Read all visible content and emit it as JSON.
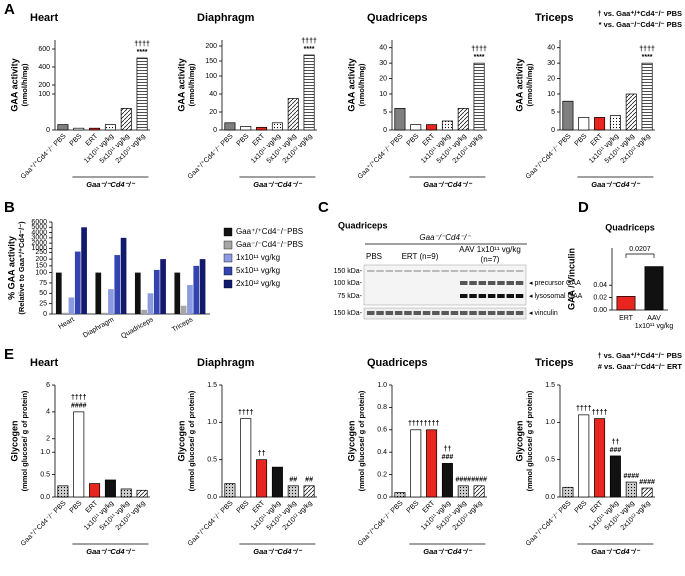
{
  "panel_labels": [
    "A",
    "B",
    "C",
    "D",
    "E"
  ],
  "chart_data": [
    {
      "type": "bar",
      "title": "Heart",
      "ylabel": [
        "GAA activity",
        "(nmol/h/mg)"
      ],
      "categories": [
        "Gaa⁺/⁺Cd4⁻/⁻ PBS",
        "PBS",
        "ERT",
        "1x10¹¹ vg/kg",
        "5x10¹¹ vg/kg",
        "2x10¹² vg/kg"
      ],
      "values": [
        15,
        5,
        5,
        15,
        60,
        500
      ],
      "colors": [
        "#7f7f7f",
        "#ffffff",
        "#e8251f",
        "#ffffff",
        "#ffffff",
        "#ffffff"
      ],
      "patterns": [
        null,
        null,
        null,
        "dots",
        "diagonal",
        "horizontal"
      ],
      "ysegments": [
        {
          "ylim": [
            0,
            100
          ],
          "yticks": [
            0,
            100
          ]
        },
        {
          "ylim": [
            100,
            700
          ],
          "yticks": [
            200,
            400,
            600
          ]
        }
      ],
      "annotations": [
        null,
        null,
        null,
        null,
        null,
        [
          "††††",
          "****"
        ]
      ],
      "group_label": "Gaa⁻/⁻Cd4⁻/⁻"
    },
    {
      "type": "bar",
      "title": "Diaphragm",
      "ylabel": [
        "GAA activity",
        "(nmol/h/mg)"
      ],
      "categories": [
        "Gaa⁺/⁺Cd4⁻/⁻ PBS",
        "PBS",
        "ERT",
        "1x10¹¹ vg/kg",
        "5x10¹¹ vg/kg",
        "2x10¹² vg/kg"
      ],
      "values": [
        8,
        4,
        3,
        8,
        35,
        170
      ],
      "colors": [
        "#7f7f7f",
        "#ffffff",
        "#e8251f",
        "#ffffff",
        "#ffffff",
        "#ffffff"
      ],
      "patterns": [
        null,
        null,
        null,
        "dots",
        "diagonal",
        "horizontal"
      ],
      "ysegments": [
        {
          "ylim": [
            0,
            40
          ],
          "yticks": [
            0,
            20,
            40
          ]
        },
        {
          "ylim": [
            40,
            220
          ],
          "yticks": [
            100,
            150,
            200
          ]
        }
      ],
      "annotations": [
        null,
        null,
        null,
        null,
        null,
        [
          "††††",
          "****"
        ]
      ],
      "group_label": "Gaa⁻/⁻Cd4⁻/⁻"
    },
    {
      "type": "bar",
      "title": "Quadriceps",
      "ylabel": [
        "GAA activity",
        "(nmol/h/mg)"
      ],
      "categories": [
        "Gaa⁺/⁺Cd4⁻/⁻ PBS",
        "PBS",
        "ERT",
        "1x10¹¹ vg/kg",
        "5x10¹¹ vg/kg",
        "2x10¹² vg/kg"
      ],
      "values": [
        6,
        1.5,
        1.5,
        2.5,
        6,
        30
      ],
      "colors": [
        "#7f7f7f",
        "#ffffff",
        "#e8251f",
        "#ffffff",
        "#ffffff",
        "#ffffff"
      ],
      "patterns": [
        null,
        null,
        null,
        "dots",
        "diagonal",
        "horizontal"
      ],
      "ysegments": [
        {
          "ylim": [
            0,
            10
          ],
          "yticks": [
            0,
            5,
            10
          ]
        },
        {
          "ylim": [
            10,
            45
          ],
          "yticks": [
            20,
            30,
            40
          ]
        }
      ],
      "annotations": [
        null,
        null,
        null,
        null,
        null,
        [
          "††††",
          "****"
        ]
      ],
      "group_label": "Gaa⁻/⁻Cd4⁻/⁻"
    },
    {
      "type": "bar",
      "title": "Triceps",
      "ylabel": [
        "GAA activity",
        "(nmol/h/mg)"
      ],
      "categories": [
        "Gaa⁺/⁺Cd4⁻/⁻ PBS",
        "PBS",
        "ERT",
        "1x10¹¹ vg/kg",
        "5x10¹¹ vg/kg",
        "2x10¹² vg/kg"
      ],
      "values": [
        8,
        3.5,
        3.5,
        4,
        10,
        30
      ],
      "colors": [
        "#7f7f7f",
        "#ffffff",
        "#e8251f",
        "#ffffff",
        "#ffffff",
        "#ffffff"
      ],
      "patterns": [
        null,
        null,
        null,
        "dots",
        "diagonal",
        "horizontal"
      ],
      "ysegments": [
        {
          "ylim": [
            0,
            10
          ],
          "yticks": [
            0,
            5,
            10
          ]
        },
        {
          "ylim": [
            10,
            45
          ],
          "yticks": [
            20,
            30,
            40
          ]
        }
      ],
      "annotations": [
        null,
        null,
        null,
        null,
        null,
        [
          "††††",
          "****"
        ]
      ],
      "group_label": "Gaa⁻/⁻Cd4⁻/⁻",
      "notes": [
        "† vs. Gaa⁺/⁺Cd4⁻/⁻ PBS",
        "* vs. Gaa⁻/⁻Cd4⁻/⁻ PBS"
      ]
    },
    {
      "type": "bar",
      "ylabel": [
        "% GAA activity",
        "(Relative to Gaa⁺/⁺Cd4⁻/⁻)"
      ],
      "categories": [
        "Heart",
        "Diaphragm",
        "Quadriceps",
        "Triceps"
      ],
      "series": [
        {
          "name": "Gaa⁺/⁺Cd4⁻/⁻PBS",
          "color": "#111111",
          "values": [
            100,
            100,
            100,
            100
          ]
        },
        {
          "name": "Gaa⁻/⁻Cd4⁻/⁻PBS",
          "color": "#a6a6a6",
          "values": [
            3,
            3,
            10,
            20
          ]
        },
        {
          "name": "1x10¹¹ vg/kg",
          "color": "#8c9be0",
          "values": [
            40,
            60,
            50,
            70
          ]
        },
        {
          "name": "5x10¹¹ vg/kg",
          "color": "#3344b0",
          "values": [
            400,
            230,
            120,
            150
          ]
        },
        {
          "name": "2x10¹² vg/kg",
          "color": "#121a6e",
          "values": [
            5000,
            3000,
            200,
            200
          ]
        }
      ],
      "ysegments": [
        {
          "ylim": [
            0,
            100
          ],
          "yticks": [
            0,
            25,
            50,
            75,
            100
          ]
        },
        {
          "ylim": [
            100,
            250
          ],
          "yticks": [
            150,
            200,
            250
          ]
        },
        {
          "ylim": [
            250,
            6000
          ],
          "yticks": [
            1000,
            2000,
            3000,
            4000,
            5000,
            6000
          ]
        }
      ]
    },
    {
      "type": "bar",
      "title": "Quadriceps",
      "ylabel": [
        "GAA / Vinculin"
      ],
      "categories": [
        "ERT",
        [
          "AAV",
          "1x10¹¹ vg/kg"
        ]
      ],
      "values": [
        0.022,
        0.07
      ],
      "colors": [
        "#e8251f",
        "#111111"
      ],
      "patterns": [
        null,
        null
      ],
      "ylim": [
        0,
        0.1
      ],
      "yticks": [
        {
          "value": 0,
          "label": "0.00"
        },
        0.02,
        0.04
      ],
      "pvalue": "0.0207"
    },
    {
      "type": "bar",
      "title": "Heart",
      "ylabel": [
        "Glycogen",
        "(mmol glucose/ g of protein)"
      ],
      "categories": [
        "Gaa⁺/⁺Cd4⁻/⁻ PBS",
        "PBS",
        "ERT",
        "1x10¹¹ vg/kg",
        "5x10¹¹ vg/kg",
        "2x10¹² vg/kg"
      ],
      "values": [
        0.25,
        4.0,
        0.3,
        0.38,
        0.18,
        0.15
      ],
      "colors": [
        "#d0d0d0",
        "#ffffff",
        "#e8251f",
        "#111111",
        "#d0d0d0",
        "#ffffff"
      ],
      "patterns": [
        "dots",
        null,
        null,
        null,
        "dots",
        "diagonal"
      ],
      "ysegments": [
        {
          "ylim": [
            0,
            1
          ],
          "yticks": [
            {
              "value": 0,
              "label": "0.0"
            },
            0.5,
            {
              "value": 1,
              "label": "1.0"
            }
          ]
        },
        {
          "ylim": [
            1,
            6
          ],
          "yticks": [
            2,
            4,
            6
          ]
        }
      ],
      "annotations": [
        null,
        [
          "††††",
          "####"
        ],
        null,
        null,
        null,
        null
      ],
      "group_label": "Gaa⁻/⁻Cd4⁻/⁻"
    },
    {
      "type": "bar",
      "title": "Diaphragm",
      "ylabel": [
        "Glycogen",
        "(mmol glucose/ g of protein)"
      ],
      "categories": [
        "Gaa⁺/⁺Cd4⁻/⁻ PBS",
        "PBS",
        "ERT",
        "1x10¹¹ vg/kg",
        "5x10¹¹ vg/kg",
        "2x10¹² vg/kg"
      ],
      "values": [
        0.18,
        1.05,
        0.5,
        0.4,
        0.15,
        0.15
      ],
      "colors": [
        "#d0d0d0",
        "#ffffff",
        "#e8251f",
        "#111111",
        "#d0d0d0",
        "#ffffff"
      ],
      "patterns": [
        "dots",
        null,
        null,
        null,
        "dots",
        "diagonal"
      ],
      "ylim": [
        0,
        1.5
      ],
      "yticks": [
        {
          "value": 0,
          "label": "0.0"
        },
        0.5,
        {
          "value": 1,
          "label": "1.0"
        },
        1.5
      ],
      "annotations": [
        null,
        [
          "††††"
        ],
        [
          "††"
        ],
        null,
        [
          "##"
        ],
        [
          "##"
        ]
      ],
      "group_label": "Gaa⁻/⁻Cd4⁻/⁻"
    },
    {
      "type": "bar",
      "title": "Quadriceps",
      "ylabel": [
        "Glycogen",
        "(mmol glucose/ g of protein)"
      ],
      "categories": [
        "Gaa⁺/⁺Cd4⁻/⁻ PBS",
        "PBS",
        "ERT",
        "1x10¹¹ vg/kg",
        "5x10¹¹ vg/kg",
        "2x10¹² vg/kg"
      ],
      "values": [
        0.04,
        0.6,
        0.6,
        0.3,
        0.1,
        0.1
      ],
      "colors": [
        "#d0d0d0",
        "#ffffff",
        "#e8251f",
        "#111111",
        "#d0d0d0",
        "#ffffff"
      ],
      "patterns": [
        "dots",
        null,
        null,
        null,
        "dots",
        "diagonal"
      ],
      "ylim": [
        0,
        1
      ],
      "yticks": [
        {
          "value": 0,
          "label": "0.0"
        },
        0.2,
        0.4,
        0.6,
        0.8,
        {
          "value": 1,
          "label": "1.0"
        }
      ],
      "annotations": [
        null,
        [
          "††††"
        ],
        [
          "††††"
        ],
        [
          "††",
          "###"
        ],
        [
          "####"
        ],
        [
          "####"
        ]
      ],
      "group_label": "Gaa⁻/⁻Cd4⁻/⁻"
    },
    {
      "type": "bar",
      "title": "Triceps",
      "ylabel": [
        "Glycogen",
        "(mmol glucose/ g of protein)"
      ],
      "categories": [
        "Gaa⁺/⁺Cd4⁻/⁻ PBS",
        "PBS",
        "ERT",
        "1x10¹¹ vg/kg",
        "5x10¹¹ vg/kg",
        "2x10¹² vg/kg"
      ],
      "values": [
        0.13,
        1.1,
        1.05,
        0.55,
        0.2,
        0.12
      ],
      "colors": [
        "#d0d0d0",
        "#ffffff",
        "#e8251f",
        "#111111",
        "#d0d0d0",
        "#ffffff"
      ],
      "patterns": [
        "dots",
        null,
        null,
        null,
        "dots",
        "diagonal"
      ],
      "ylim": [
        0,
        1.5
      ],
      "yticks": [
        {
          "value": 0,
          "label": "0.0"
        },
        0.5,
        {
          "value": 1,
          "label": "1.0"
        },
        1.5
      ],
      "annotations": [
        null,
        [
          "††††"
        ],
        [
          "††††"
        ],
        [
          "††",
          "###"
        ],
        [
          "####"
        ],
        [
          "####"
        ]
      ],
      "group_label": "Gaa⁻/⁻Cd4⁻/⁻",
      "notes": [
        "† vs. Gaa⁺/⁺Cd4⁻/⁻ PBS",
        "# vs. Gaa⁻/⁻Cd4⁻/⁻ ERT"
      ]
    }
  ],
  "blot": {
    "title": "Quadriceps",
    "group_label": "Gaa⁻/⁻Cd4⁻/⁻",
    "columns": [
      "PBS",
      "ERT (n=9)"
    ],
    "aav": [
      "AAV 1x10¹¹ vg/kg",
      "(n=7)"
    ],
    "markers": [
      "150 kDa-",
      "100 kDa-",
      "75 kDa-",
      "150 kDa-"
    ],
    "bands": [
      "◂ precursor GAA",
      "◂ lysosomal GAA",
      "◂ vinculin"
    ]
  }
}
